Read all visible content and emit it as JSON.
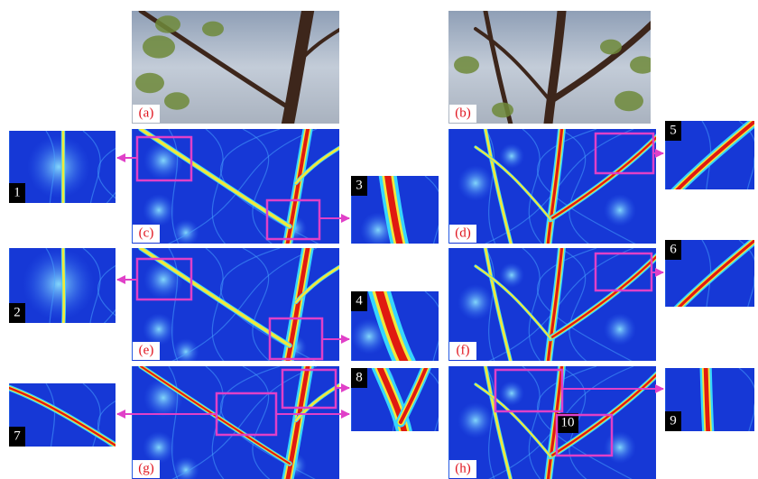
{
  "panels": [
    {
      "label": "(a)"
    },
    {
      "label": "(b)"
    },
    {
      "label": "(c)"
    },
    {
      "label": "(d)"
    },
    {
      "label": "(e)"
    },
    {
      "label": "(f)"
    },
    {
      "label": "(g)"
    },
    {
      "label": "(h)"
    }
  ],
  "zooms": [
    {
      "label": "1"
    },
    {
      "label": "2"
    },
    {
      "label": "3"
    },
    {
      "label": "4"
    },
    {
      "label": "5"
    },
    {
      "label": "6"
    },
    {
      "label": "7"
    },
    {
      "label": "8"
    },
    {
      "label": "9"
    },
    {
      "label": "10"
    }
  ]
}
